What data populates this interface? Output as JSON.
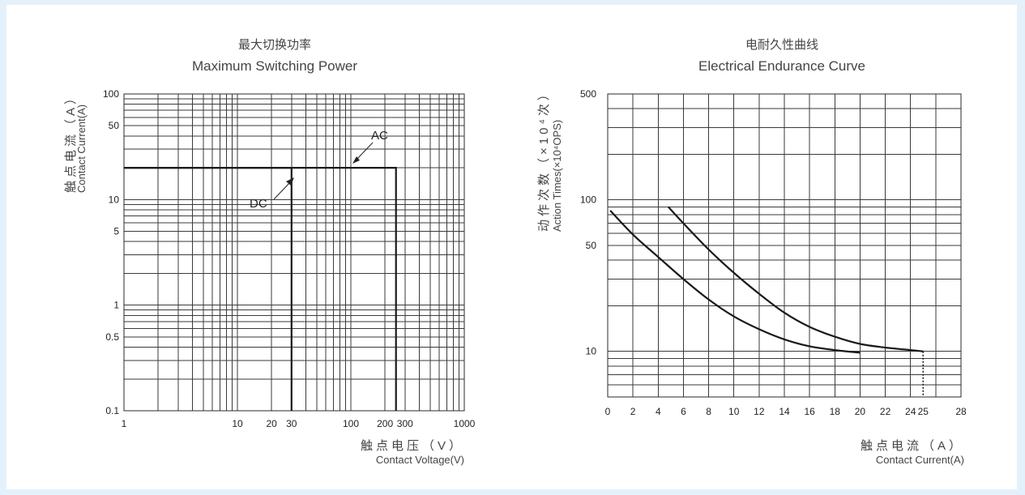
{
  "chart_data": [
    {
      "type": "line",
      "title_cn": "最大切换功率",
      "title": "Maximum Switching Power",
      "xlabel_cn": "触点电压（V）",
      "xlabel": "Contact Voltage(V)",
      "ylabel_cn": "触点电流（A）",
      "ylabel": "Contact Current(A)",
      "x_scale": "log",
      "y_scale": "log",
      "xlim": [
        1,
        1000
      ],
      "ylim": [
        0.1,
        100
      ],
      "x_ticks": [
        1,
        10,
        20,
        30,
        100,
        200,
        300,
        1000
      ],
      "y_ticks": [
        0.1,
        0.5,
        1,
        5,
        10,
        50,
        100
      ],
      "grid": true,
      "series": [
        {
          "name": "DC",
          "x": [
            1,
            30,
            30
          ],
          "y": [
            20,
            20,
            0.1
          ]
        },
        {
          "name": "AC",
          "x": [
            1,
            250,
            250
          ],
          "y": [
            20,
            20,
            0.1
          ]
        }
      ]
    },
    {
      "type": "line",
      "title_cn": "电耐久性曲线",
      "title": "Electrical Endurance Curve",
      "xlabel_cn": "触点电流（A）",
      "xlabel": "Contact Current(A)",
      "ylabel_cn": "动作次数（×10⁴次）",
      "ylabel": "Action Times(×10⁴OPS)",
      "x_scale": "linear",
      "y_scale": "log",
      "xlim": [
        0,
        28
      ],
      "ylim": [
        5,
        500
      ],
      "x_ticks": [
        "0",
        "2",
        "4",
        "6",
        "8",
        "10",
        "12",
        "14",
        "16",
        "18",
        "20",
        "22",
        "24",
        "25",
        "28"
      ],
      "y_ticks": [
        10,
        50,
        100,
        500
      ],
      "grid": true,
      "series": [
        {
          "x": [
            0.2,
            2,
            4,
            6,
            8,
            10,
            12,
            14,
            16,
            18,
            20
          ],
          "y": [
            85,
            59,
            42,
            30,
            22,
            17,
            14,
            12,
            10.8,
            10.2,
            9.8
          ]
        },
        {
          "x": [
            4.8,
            6,
            8,
            10,
            12,
            14,
            16,
            18,
            20,
            22,
            24,
            25
          ],
          "y": [
            90,
            70,
            47,
            33,
            24,
            18,
            14.5,
            12.5,
            11.2,
            10.6,
            10.2,
            10
          ]
        }
      ],
      "dashed_line": {
        "x": 25,
        "y": [
          5,
          10
        ]
      }
    }
  ]
}
